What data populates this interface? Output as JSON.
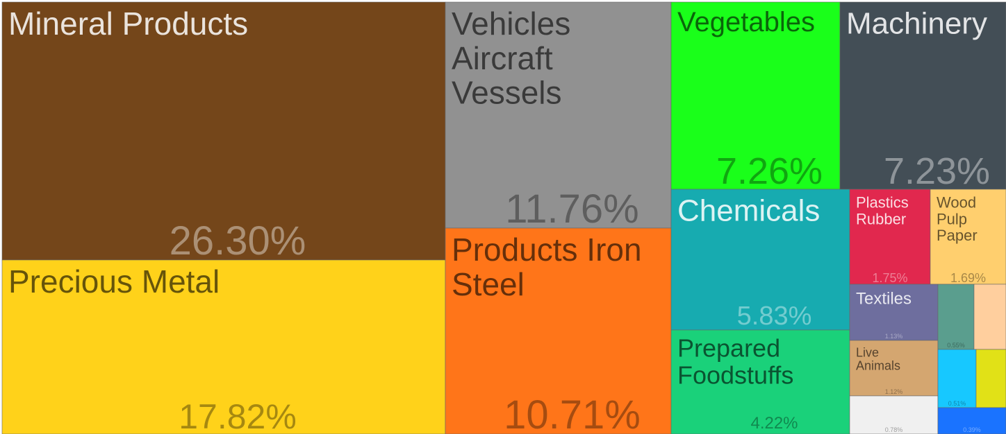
{
  "chart_data": {
    "type": "treemap",
    "items": [
      {
        "labels": [
          "Mineral Products"
        ],
        "value": 26.3,
        "value_label": "26.30%",
        "color": "#74461a"
      },
      {
        "labels": [
          "Precious Metal"
        ],
        "value": 17.82,
        "value_label": "17.82%",
        "color": "#ffd21a"
      },
      {
        "labels": [
          "Vehicles",
          "Aircraft",
          "Vessels"
        ],
        "value": 11.76,
        "value_label": "11.76%",
        "color": "#919191"
      },
      {
        "labels": [
          "Products Iron",
          "Steel"
        ],
        "value": 10.71,
        "value_label": "10.71%",
        "color": "#ff7519"
      },
      {
        "labels": [
          "Vegetables"
        ],
        "value": 7.26,
        "value_label": "7.26%",
        "color": "#1aff1a"
      },
      {
        "labels": [
          "Machinery"
        ],
        "value": 7.23,
        "value_label": "7.23%",
        "color": "#434e56"
      },
      {
        "labels": [
          "Chemicals"
        ],
        "value": 5.83,
        "value_label": "5.83%",
        "color": "#17abb0"
      },
      {
        "labels": [
          "Prepared",
          "Foodstuffs"
        ],
        "value": 4.22,
        "value_label": "4.22%",
        "color": "#1ad17a"
      },
      {
        "labels": [
          "Plastics",
          "Rubber"
        ],
        "value": 1.75,
        "value_label": "1.75%",
        "color": "#e1284e"
      },
      {
        "labels": [
          "Wood",
          "Pulp",
          "Paper"
        ],
        "value": 1.69,
        "value_label": "1.69%",
        "color": "#ffcf6e"
      },
      {
        "labels": [
          "Textiles"
        ],
        "value": 1.13,
        "value_label": "1.13%",
        "color": "#6e6e9e"
      },
      {
        "labels": [
          "Live",
          "Animals"
        ],
        "value": 1.12,
        "value_label": "1.12%",
        "color": "#d4a670"
      },
      {
        "labels": null,
        "value": 0.78,
        "value_label": "0.78%",
        "color": "#f0f0f0"
      },
      {
        "labels": null,
        "value": 0.55,
        "value_label": "0.55%",
        "color": "#5a9e8e"
      },
      {
        "labels": null,
        "value": 0.48,
        "value_label": null,
        "color": "#ffcf9e"
      },
      {
        "labels": null,
        "value": 0.51,
        "value_label": "0.51%",
        "color": "#17c8ff"
      },
      {
        "labels": null,
        "value": 0.4,
        "value_label": null,
        "color": "#e1e117"
      },
      {
        "labels": null,
        "value": 0.39,
        "value_label": "0.39%",
        "color": "#1a73ff"
      }
    ]
  }
}
